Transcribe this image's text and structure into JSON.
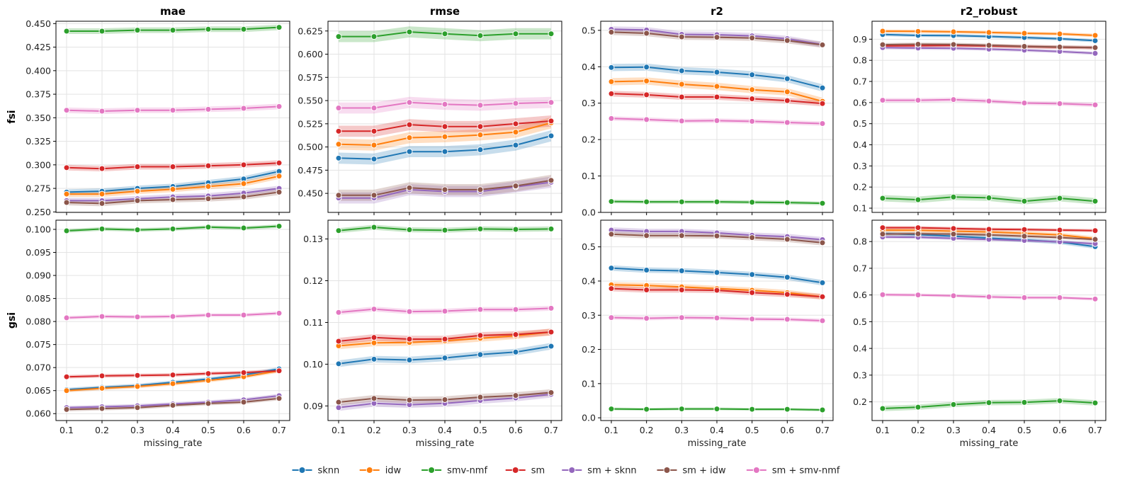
{
  "chart_data": {
    "type": "line",
    "layout": "2 rows x 4 columns grid of line charts with confidence bands",
    "x": [
      0.1,
      0.2,
      0.3,
      0.4,
      0.5,
      0.6,
      0.7
    ],
    "x_tick_labels": [
      "0.1",
      "0.2",
      "0.3",
      "0.4",
      "0.5",
      "0.6",
      "0.7"
    ],
    "xlabel": "missing_rate",
    "column_titles": [
      "mae",
      "rmse",
      "r2",
      "r2_robust"
    ],
    "row_labels": [
      "fsi",
      "gsi"
    ],
    "series_names": [
      "sknn",
      "idw",
      "smv-nmf",
      "sm",
      "sm + sknn",
      "sm + idw",
      "sm + smv-nmf"
    ],
    "series_colors": [
      "#1f77b4",
      "#ff7f0e",
      "#2ca02c",
      "#d62728",
      "#9467bd",
      "#8c564b",
      "#e377c2"
    ],
    "legend_position": "bottom-center",
    "grid": true,
    "panels": [
      {
        "row": "fsi",
        "metric": "mae",
        "ylim": [
          0.2495,
          0.4525
        ],
        "yticks": [
          0.25,
          0.275,
          0.3,
          0.325,
          0.35,
          0.375,
          0.4,
          0.425,
          0.45
        ],
        "ytick_labels": [
          "0.250",
          "0.275",
          "0.300",
          "0.325",
          "0.350",
          "0.375",
          "0.400",
          "0.425",
          "0.450"
        ],
        "series": [
          {
            "name": "sknn",
            "values": [
              0.271,
              0.272,
              0.275,
              0.277,
              0.281,
              0.285,
              0.293
            ],
            "band": 0.003
          },
          {
            "name": "idw",
            "values": [
              0.269,
              0.269,
              0.272,
              0.274,
              0.277,
              0.28,
              0.288
            ],
            "band": 0.003
          },
          {
            "name": "smv-nmf",
            "values": [
              0.442,
              0.442,
              0.443,
              0.443,
              0.444,
              0.444,
              0.446
            ],
            "band": 0.003
          },
          {
            "name": "sm",
            "values": [
              0.297,
              0.296,
              0.298,
              0.298,
              0.299,
              0.3,
              0.302
            ],
            "band": 0.003
          },
          {
            "name": "sm + sknn",
            "values": [
              0.262,
              0.262,
              0.264,
              0.266,
              0.267,
              0.27,
              0.275
            ],
            "band": 0.003
          },
          {
            "name": "sm + idw",
            "values": [
              0.26,
              0.259,
              0.262,
              0.263,
              0.264,
              0.266,
              0.271
            ],
            "band": 0.003
          },
          {
            "name": "sm + smv-nmf",
            "values": [
              0.358,
              0.357,
              0.358,
              0.358,
              0.359,
              0.36,
              0.362
            ],
            "band": 0.003
          }
        ]
      },
      {
        "row": "fsi",
        "metric": "rmse",
        "ylim": [
          0.4295,
          0.6355
        ],
        "yticks": [
          0.45,
          0.475,
          0.5,
          0.525,
          0.55,
          0.575,
          0.6,
          0.625
        ],
        "ytick_labels": [
          "0.450",
          "0.475",
          "0.500",
          "0.525",
          "0.550",
          "0.575",
          "0.600",
          "0.625"
        ],
        "series": [
          {
            "name": "sknn",
            "values": [
              0.488,
              0.487,
              0.495,
              0.495,
              0.497,
              0.502,
              0.512
            ],
            "band": 0.006
          },
          {
            "name": "idw",
            "values": [
              0.503,
              0.502,
              0.51,
              0.511,
              0.513,
              0.516,
              0.526
            ],
            "band": 0.006
          },
          {
            "name": "smv-nmf",
            "values": [
              0.619,
              0.619,
              0.624,
              0.622,
              0.62,
              0.622,
              0.622
            ],
            "band": 0.006
          },
          {
            "name": "sm",
            "values": [
              0.517,
              0.517,
              0.524,
              0.522,
              0.522,
              0.525,
              0.528
            ],
            "band": 0.006
          },
          {
            "name": "sm + sknn",
            "values": [
              0.445,
              0.445,
              0.454,
              0.452,
              0.452,
              0.457,
              0.462
            ],
            "band": 0.006
          },
          {
            "name": "sm + idw",
            "values": [
              0.448,
              0.448,
              0.456,
              0.454,
              0.454,
              0.458,
              0.464
            ],
            "band": 0.006
          },
          {
            "name": "sm + smv-nmf",
            "values": [
              0.542,
              0.542,
              0.548,
              0.546,
              0.545,
              0.547,
              0.548
            ],
            "band": 0.006
          }
        ]
      },
      {
        "row": "fsi",
        "metric": "r2",
        "ylim": [
          0,
          0.525
        ],
        "yticks": [
          0,
          0.1,
          0.2,
          0.3,
          0.4,
          0.5
        ],
        "ytick_labels": [
          "0.0",
          "0.1",
          "0.2",
          "0.3",
          "0.4",
          "0.5"
        ],
        "series": [
          {
            "name": "sknn",
            "values": [
              0.398,
              0.399,
              0.389,
              0.385,
              0.378,
              0.367,
              0.342
            ],
            "band": 0.01
          },
          {
            "name": "idw",
            "values": [
              0.359,
              0.361,
              0.352,
              0.346,
              0.337,
              0.331,
              0.305
            ],
            "band": 0.01
          },
          {
            "name": "smv-nmf",
            "values": [
              0.03,
              0.029,
              0.029,
              0.029,
              0.028,
              0.027,
              0.025
            ],
            "band": 0.005
          },
          {
            "name": "sm",
            "values": [
              0.326,
              0.323,
              0.317,
              0.317,
              0.312,
              0.307,
              0.299
            ],
            "band": 0.008
          },
          {
            "name": "sm + sknn",
            "values": [
              0.503,
              0.501,
              0.489,
              0.488,
              0.485,
              0.477,
              0.461
            ],
            "band": 0.008
          },
          {
            "name": "sm + idw",
            "values": [
              0.495,
              0.492,
              0.482,
              0.481,
              0.479,
              0.472,
              0.46
            ],
            "band": 0.008
          },
          {
            "name": "sm + smv-nmf",
            "values": [
              0.258,
              0.255,
              0.251,
              0.252,
              0.25,
              0.247,
              0.244
            ],
            "band": 0.006
          }
        ]
      },
      {
        "row": "fsi",
        "metric": "r2_robust",
        "ylim": [
          0.08,
          0.985
        ],
        "yticks": [
          0.1,
          0.2,
          0.3,
          0.4,
          0.5,
          0.6,
          0.7,
          0.8,
          0.9
        ],
        "ytick_labels": [
          "0.1",
          "0.2",
          "0.3",
          "0.4",
          "0.5",
          "0.6",
          "0.7",
          "0.8",
          "0.9"
        ],
        "series": [
          {
            "name": "sknn",
            "values": [
              0.922,
              0.918,
              0.917,
              0.913,
              0.908,
              0.902,
              0.893
            ],
            "band": 0.008
          },
          {
            "name": "idw",
            "values": [
              0.938,
              0.937,
              0.935,
              0.932,
              0.928,
              0.925,
              0.918
            ],
            "band": 0.008
          },
          {
            "name": "smv-nmf",
            "values": [
              0.147,
              0.14,
              0.153,
              0.149,
              0.133,
              0.147,
              0.133
            ],
            "band": 0.015
          },
          {
            "name": "sm",
            "values": [
              0.868,
              0.869,
              0.87,
              0.868,
              0.865,
              0.862,
              0.86
            ],
            "band": 0.008
          },
          {
            "name": "sm + sknn",
            "values": [
              0.86,
              0.858,
              0.857,
              0.853,
              0.848,
              0.842,
              0.833
            ],
            "band": 0.008
          },
          {
            "name": "sm + idw",
            "values": [
              0.874,
              0.876,
              0.875,
              0.871,
              0.866,
              0.863,
              0.86
            ],
            "band": 0.008
          },
          {
            "name": "sm + smv-nmf",
            "values": [
              0.611,
              0.611,
              0.614,
              0.607,
              0.598,
              0.595,
              0.589
            ],
            "band": 0.01
          }
        ]
      },
      {
        "row": "gsi",
        "metric": "mae",
        "ylim": [
          0.0585,
          0.102
        ],
        "yticks": [
          0.06,
          0.065,
          0.07,
          0.075,
          0.08,
          0.085,
          0.09,
          0.095,
          0.1
        ],
        "ytick_labels": [
          "0.060",
          "0.065",
          "0.070",
          "0.075",
          "0.080",
          "0.085",
          "0.090",
          "0.095",
          "0.100"
        ],
        "series": [
          {
            "name": "sknn",
            "values": [
              0.0652,
              0.0657,
              0.0661,
              0.0668,
              0.0675,
              0.0684,
              0.0697
            ],
            "band": 0.0004
          },
          {
            "name": "idw",
            "values": [
              0.065,
              0.0655,
              0.0659,
              0.0665,
              0.0672,
              0.068,
              0.0693
            ],
            "band": 0.0004
          },
          {
            "name": "smv-nmf",
            "values": [
              0.0997,
              0.1001,
              0.0999,
              0.1001,
              0.1005,
              0.1003,
              0.1007
            ],
            "band": 0.0004
          },
          {
            "name": "sm",
            "values": [
              0.068,
              0.0682,
              0.0683,
              0.0684,
              0.0687,
              0.0689,
              0.0693
            ],
            "band": 0.0004
          },
          {
            "name": "sm + sknn",
            "values": [
              0.0613,
              0.0615,
              0.0617,
              0.0621,
              0.0625,
              0.063,
              0.0639
            ],
            "band": 0.0004
          },
          {
            "name": "sm + idw",
            "values": [
              0.0609,
              0.0611,
              0.0613,
              0.0618,
              0.0622,
              0.0625,
              0.0633
            ],
            "band": 0.0004
          },
          {
            "name": "sm + smv-nmf",
            "values": [
              0.0808,
              0.0811,
              0.081,
              0.0811,
              0.0814,
              0.0814,
              0.0818
            ],
            "band": 0.0004
          }
        ]
      },
      {
        "row": "gsi",
        "metric": "rmse",
        "ylim": [
          0.0865,
          0.1345
        ],
        "yticks": [
          0.09,
          0.1,
          0.11,
          0.12,
          0.13
        ],
        "ytick_labels": [
          "0.09",
          "0.10",
          "0.11",
          "0.12",
          "0.13"
        ],
        "series": [
          {
            "name": "sknn",
            "values": [
              0.1001,
              0.1012,
              0.101,
              0.1015,
              0.1023,
              0.1029,
              0.1043
            ],
            "band": 0.0008
          },
          {
            "name": "idw",
            "values": [
              0.1044,
              0.1051,
              0.1052,
              0.1056,
              0.1062,
              0.1068,
              0.1077
            ],
            "band": 0.0008
          },
          {
            "name": "smv-nmf",
            "values": [
              0.132,
              0.1328,
              0.1322,
              0.1321,
              0.1324,
              0.1323,
              0.1324
            ],
            "band": 0.0006
          },
          {
            "name": "sm",
            "values": [
              0.1055,
              0.1064,
              0.106,
              0.106,
              0.1069,
              0.1071,
              0.1077
            ],
            "band": 0.0008
          },
          {
            "name": "sm + sknn",
            "values": [
              0.0896,
              0.0906,
              0.0903,
              0.0906,
              0.0913,
              0.0919,
              0.0928
            ],
            "band": 0.0008
          },
          {
            "name": "sm + idw",
            "values": [
              0.0909,
              0.0918,
              0.0914,
              0.0915,
              0.0921,
              0.0925,
              0.0932
            ],
            "band": 0.0008
          },
          {
            "name": "sm + smv-nmf",
            "values": [
              0.1124,
              0.1132,
              0.1126,
              0.1127,
              0.1131,
              0.1131,
              0.1134
            ],
            "band": 0.0006
          }
        ]
      },
      {
        "row": "gsi",
        "metric": "r2",
        "ylim": [
          -0.008,
          0.578
        ],
        "yticks": [
          0,
          0.1,
          0.2,
          0.3,
          0.4,
          0.5
        ],
        "ytick_labels": [
          "0.0",
          "0.1",
          "0.2",
          "0.3",
          "0.4",
          "0.5"
        ],
        "series": [
          {
            "name": "sknn",
            "values": [
              0.438,
              0.432,
              0.43,
              0.425,
              0.419,
              0.411,
              0.395
            ],
            "band": 0.008
          },
          {
            "name": "idw",
            "values": [
              0.389,
              0.387,
              0.383,
              0.378,
              0.373,
              0.366,
              0.354
            ],
            "band": 0.008
          },
          {
            "name": "smv-nmf",
            "values": [
              0.026,
              0.025,
              0.026,
              0.026,
              0.025,
              0.025,
              0.023
            ],
            "band": 0.004
          },
          {
            "name": "sm",
            "values": [
              0.378,
              0.374,
              0.374,
              0.373,
              0.366,
              0.361,
              0.354
            ],
            "band": 0.008
          },
          {
            "name": "sm + sknn",
            "values": [
              0.549,
              0.545,
              0.545,
              0.541,
              0.534,
              0.53,
              0.521
            ],
            "band": 0.008
          },
          {
            "name": "sm + idw",
            "values": [
              0.537,
              0.533,
              0.533,
              0.532,
              0.527,
              0.522,
              0.512
            ],
            "band": 0.008
          },
          {
            "name": "sm + smv-nmf",
            "values": [
              0.293,
              0.291,
              0.293,
              0.292,
              0.289,
              0.288,
              0.284
            ],
            "band": 0.006
          }
        ]
      },
      {
        "row": "gsi",
        "metric": "r2_robust",
        "ylim": [
          0.13,
          0.88
        ],
        "yticks": [
          0.2,
          0.3,
          0.4,
          0.5,
          0.6,
          0.7,
          0.8
        ],
        "ytick_labels": [
          "0.2",
          "0.3",
          "0.4",
          "0.5",
          "0.6",
          "0.7",
          "0.8"
        ],
        "series": [
          {
            "name": "sknn",
            "values": [
              0.83,
              0.826,
              0.82,
              0.813,
              0.806,
              0.798,
              0.781
            ],
            "band": 0.008
          },
          {
            "name": "idw",
            "values": [
              0.843,
              0.842,
              0.839,
              0.836,
              0.831,
              0.825,
              0.811
            ],
            "band": 0.008
          },
          {
            "name": "smv-nmf",
            "values": [
              0.175,
              0.18,
              0.19,
              0.197,
              0.198,
              0.204,
              0.196
            ],
            "band": 0.01
          },
          {
            "name": "sm",
            "values": [
              0.852,
              0.852,
              0.849,
              0.846,
              0.845,
              0.843,
              0.841
            ],
            "band": 0.006
          },
          {
            "name": "sm + sknn",
            "values": [
              0.817,
              0.816,
              0.812,
              0.808,
              0.804,
              0.799,
              0.792
            ],
            "band": 0.006
          },
          {
            "name": "sm + idw",
            "values": [
              0.828,
              0.829,
              0.828,
              0.825,
              0.82,
              0.815,
              0.808
            ],
            "band": 0.006
          },
          {
            "name": "sm + smv-nmf",
            "values": [
              0.601,
              0.6,
              0.597,
              0.593,
              0.59,
              0.59,
              0.585
            ],
            "band": 0.006
          }
        ]
      }
    ]
  }
}
